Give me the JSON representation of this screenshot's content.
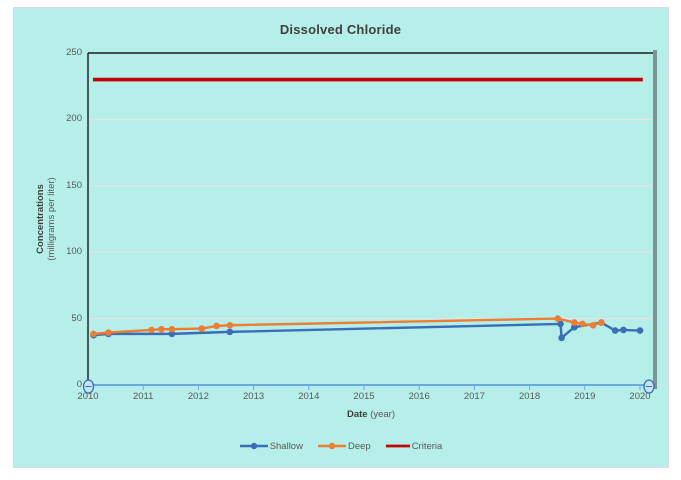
{
  "title": "Dissolved Chloride",
  "y_axis": {
    "title_bold": "Concentrations",
    "title_sub": "(milligrams per liter)",
    "ticks": [
      0,
      50,
      100,
      150,
      200,
      250
    ]
  },
  "x_axis": {
    "title_bold": "Date",
    "title_sub": "(year)",
    "ticks": [
      2010,
      2011,
      2012,
      2013,
      2014,
      2015,
      2016,
      2017,
      2018,
      2019,
      2020
    ]
  },
  "legend": [
    {
      "label": "Shallow",
      "color": "#3a6eb5",
      "marker": true
    },
    {
      "label": "Deep",
      "color": "#ed7d31",
      "marker": true
    },
    {
      "label": "Criteria",
      "color": "#c00000",
      "marker": false
    }
  ],
  "colors": {
    "panel_background": "#b6efe9",
    "plot_border": "#1a1a1a",
    "gridline": "#ece2e2",
    "axis_slider_track": "#6aa7dd",
    "slider_handle_fill": "#c9e2f5",
    "slider_handle_stroke": "#2e75b6",
    "right_scrollbar": "#7a9593",
    "tick_label": "#595959"
  },
  "chart_data": {
    "type": "line",
    "title": "Dissolved Chloride",
    "xlabel": "Date (year)",
    "ylabel": "Concentrations (milligrams per liter)",
    "xlim": [
      2010,
      2020.3
    ],
    "ylim": [
      0,
      250
    ],
    "y_tick_step": 50,
    "grid": true,
    "legend_position": "bottom",
    "series": [
      {
        "name": "Shallow",
        "color": "#3a6eb5",
        "marker": "circle",
        "points": [
          [
            2010.1,
            37.5
          ],
          [
            2010.37,
            38.5
          ],
          [
            2011.52,
            38.5
          ],
          [
            2012.57,
            40
          ],
          [
            2018.56,
            46
          ],
          [
            2018.58,
            35.5
          ],
          [
            2018.81,
            43.5
          ],
          [
            2019.3,
            47
          ],
          [
            2019.55,
            41
          ],
          [
            2019.7,
            41.5
          ],
          [
            2020.0,
            41
          ]
        ]
      },
      {
        "name": "Deep",
        "color": "#ed7d31",
        "marker": "circle",
        "points": [
          [
            2010.1,
            38.5
          ],
          [
            2010.37,
            39.5
          ],
          [
            2011.15,
            41.5
          ],
          [
            2011.33,
            42
          ],
          [
            2011.52,
            42
          ],
          [
            2012.06,
            42.5
          ],
          [
            2012.33,
            44.5
          ],
          [
            2012.57,
            45
          ],
          [
            2018.51,
            50
          ],
          [
            2018.81,
            47
          ],
          [
            2018.96,
            46
          ],
          [
            2019.15,
            45
          ],
          [
            2019.3,
            47
          ]
        ]
      },
      {
        "name": "Criteria",
        "color": "#c00000",
        "type": "hline",
        "value": 230,
        "xspan": [
          2010.09,
          2020.05
        ]
      }
    ]
  }
}
